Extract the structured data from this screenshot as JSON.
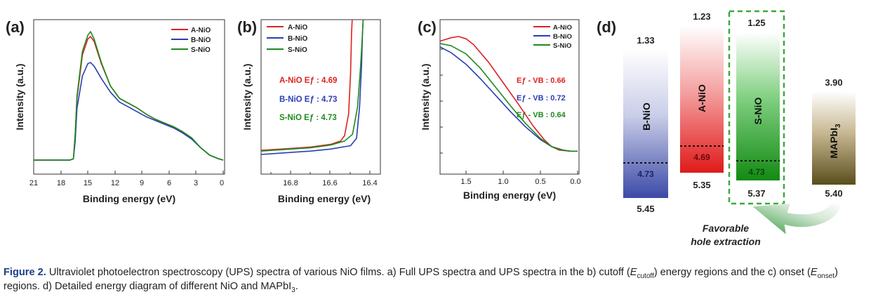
{
  "colors": {
    "a": "#e02020",
    "b": "#2b3db5",
    "s": "#1e8a1e",
    "caption_label": "#1a3f8a",
    "green_box": "#3aaa3a"
  },
  "panels": {
    "a": {
      "label": "(a)",
      "xlabel": "Binding energy (eV)",
      "ylabel": "Intensity (a.u.)",
      "legend": [
        "A-NiO",
        "B-NiO",
        "S-NiO"
      ],
      "ticks": [
        "21",
        "18",
        "15",
        "12",
        "9",
        "6",
        "3",
        "0"
      ]
    },
    "b": {
      "label": "(b)",
      "xlabel": "Binding energy (eV)",
      "ylabel": "Intensity (a.u.)",
      "legend": [
        "A-NiO",
        "B-NiO",
        "S-NiO"
      ],
      "ticks": [
        "16.8",
        "16.6",
        "16.4"
      ],
      "annotations": [
        "A-NiO Eƒ : 4.69",
        "B-NiO Eƒ : 4.73",
        "S-NiO Eƒ : 4.73"
      ]
    },
    "c": {
      "label": "(c)",
      "xlabel": "Binding energy (eV)",
      "ylabel": "Intensity (a.u.)",
      "legend": [
        "A-NiO",
        "B-NiO",
        "S-NiO"
      ],
      "ticks": [
        "1.5",
        "1.0",
        "0.5",
        "0.0"
      ],
      "annotations": [
        "Eƒ - VB : 0.66",
        "Eƒ - VB : 0.72",
        "Eƒ - VB : 0.64"
      ]
    },
    "d": {
      "label": "(d)",
      "bars": [
        {
          "name": "B-NiO",
          "top": "1.33",
          "fermi": "4.73",
          "bottom": "5.45"
        },
        {
          "name": "A-NiO",
          "top": "1.23",
          "fermi": "4.69",
          "bottom": "5.35"
        },
        {
          "name": "S-NiO",
          "top": "1.25",
          "fermi": "4.73",
          "bottom": "5.37"
        },
        {
          "name": "MAPbI",
          "name_sub": "3",
          "top": "3.90",
          "bottom": "5.40"
        }
      ],
      "arrow_text_1": "Favorable",
      "arrow_text_2": "hole extraction"
    }
  },
  "chart_data": [
    {
      "type": "line",
      "xlabel": "Binding energy (eV)",
      "ylabel": "Intensity (a.u.)",
      "xlim": [
        21,
        0
      ],
      "series": [
        {
          "name": "A-NiO",
          "x": [
            21,
            17,
            16.6,
            16.4,
            16.2,
            15.6,
            15.0,
            14.7,
            14.3,
            13.5,
            12.5,
            11.5,
            10.5,
            9.5,
            8.5,
            7.5,
            6.5,
            5.5,
            4.5,
            3.5,
            2.5,
            1.5,
            0.5,
            0
          ],
          "y": [
            0.0,
            0.0,
            0.01,
            0.2,
            0.5,
            0.85,
            0.98,
            1.0,
            0.96,
            0.78,
            0.6,
            0.5,
            0.46,
            0.42,
            0.37,
            0.33,
            0.3,
            0.27,
            0.23,
            0.18,
            0.1,
            0.04,
            0.01,
            0.0
          ]
        },
        {
          "name": "B-NiO",
          "x": [
            21,
            17,
            16.6,
            16.4,
            16.2,
            15.6,
            15.0,
            14.7,
            14.3,
            13.5,
            12.5,
            11.5,
            10.5,
            9.5,
            8.5,
            7.5,
            6.5,
            5.5,
            4.5,
            3.5,
            2.5,
            1.5,
            0.5,
            0
          ],
          "y": [
            0.0,
            0.0,
            0.01,
            0.15,
            0.42,
            0.68,
            0.78,
            0.79,
            0.76,
            0.66,
            0.55,
            0.47,
            0.43,
            0.39,
            0.35,
            0.32,
            0.29,
            0.26,
            0.22,
            0.17,
            0.1,
            0.04,
            0.01,
            0.0
          ]
        },
        {
          "name": "S-NiO",
          "x": [
            21,
            17,
            16.6,
            16.4,
            16.2,
            15.6,
            15.0,
            14.7,
            14.3,
            13.5,
            12.5,
            11.5,
            10.5,
            9.5,
            8.5,
            7.5,
            6.5,
            5.5,
            4.5,
            3.5,
            2.5,
            1.5,
            0.5,
            0
          ],
          "y": [
            0.0,
            0.0,
            0.01,
            0.21,
            0.52,
            0.88,
            1.01,
            1.04,
            0.98,
            0.79,
            0.6,
            0.5,
            0.46,
            0.42,
            0.37,
            0.33,
            0.3,
            0.27,
            0.23,
            0.18,
            0.1,
            0.04,
            0.01,
            0.0
          ]
        }
      ]
    },
    {
      "type": "line",
      "xlabel": "Binding energy (eV)",
      "ylabel": "Intensity (a.u.)",
      "xlim": [
        16.95,
        16.35
      ],
      "series": [
        {
          "name": "A-NiO",
          "x": [
            16.95,
            16.8,
            16.7,
            16.6,
            16.55,
            16.53,
            16.51,
            16.5,
            16.495,
            16.49
          ],
          "y": [
            0.03,
            0.045,
            0.055,
            0.075,
            0.1,
            0.14,
            0.3,
            0.6,
            0.9,
            1.05
          ]
        },
        {
          "name": "B-NiO",
          "x": [
            16.95,
            16.8,
            16.7,
            16.6,
            16.5,
            16.47,
            16.455,
            16.445,
            16.44,
            16.435
          ],
          "y": [
            0.0,
            0.015,
            0.025,
            0.04,
            0.065,
            0.12,
            0.35,
            0.65,
            0.9,
            1.05
          ]
        },
        {
          "name": "S-NiO",
          "x": [
            16.95,
            16.8,
            16.7,
            16.6,
            16.53,
            16.49,
            16.465,
            16.45,
            16.44,
            16.435
          ],
          "y": [
            0.025,
            0.04,
            0.05,
            0.07,
            0.1,
            0.15,
            0.35,
            0.65,
            0.9,
            1.05
          ]
        }
      ]
    },
    {
      "type": "line",
      "xlabel": "Binding energy (eV)",
      "ylabel": "Intensity (a.u.)",
      "xlim": [
        1.85,
        0.0
      ],
      "series": [
        {
          "name": "A-NiO",
          "x": [
            1.85,
            1.7,
            1.6,
            1.5,
            1.4,
            1.2,
            1.0,
            0.8,
            0.6,
            0.45,
            0.35,
            0.25,
            0.1,
            0.0
          ],
          "y": [
            0.96,
            0.99,
            1.0,
            0.98,
            0.93,
            0.78,
            0.6,
            0.42,
            0.23,
            0.11,
            0.05,
            0.02,
            0.01,
            0.01
          ]
        },
        {
          "name": "B-NiO",
          "x": [
            1.85,
            1.7,
            1.5,
            1.3,
            1.1,
            0.9,
            0.7,
            0.5,
            0.35,
            0.2,
            0.1,
            0.0
          ],
          "y": [
            0.91,
            0.86,
            0.76,
            0.63,
            0.49,
            0.35,
            0.22,
            0.11,
            0.05,
            0.02,
            0.01,
            0.01
          ]
        },
        {
          "name": "S-NiO",
          "x": [
            1.85,
            1.7,
            1.5,
            1.3,
            1.1,
            0.9,
            0.7,
            0.5,
            0.35,
            0.2,
            0.1,
            0.0
          ],
          "y": [
            0.94,
            0.92,
            0.85,
            0.72,
            0.56,
            0.4,
            0.25,
            0.12,
            0.05,
            0.02,
            0.01,
            0.01
          ]
        }
      ]
    }
  ],
  "caption": {
    "label": "Figure 2.",
    "line1_a": "Ultraviolet photoelectron spectroscopy (UPS) spectra of various NiO films. a) Full UPS spectra and UPS spectra in the b) cutoff (",
    "e": "E",
    "sub_cutoff": "cutoff",
    "line1_b": ") energy",
    "line2_a": "regions and the c) onset (",
    "sub_onset": "onset",
    "line2_b": ") regions. d) Detailed energy diagram of different NiO and MAPbI",
    "sub_3": "3",
    "line2_c": "."
  }
}
